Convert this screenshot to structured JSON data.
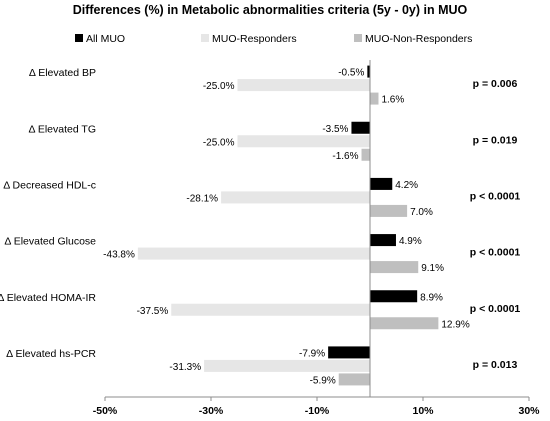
{
  "chart_data": {
    "type": "bar",
    "orientation": "horizontal",
    "title": "Differences (%) in Metabolic abnormalities criteria (5y - 0y) in MUO",
    "categories": [
      "Δ Elevated BP",
      "Δ Elevated TG",
      "Δ Decreased  HDL-c",
      "Δ Elevated Glucose",
      "Δ Elevated HOMA-IR",
      "Δ Elevated hs-PCR"
    ],
    "series": [
      {
        "name": "All MUO",
        "color": "#000000",
        "values": [
          -0.5,
          -3.5,
          4.2,
          4.9,
          8.9,
          -7.9
        ],
        "labels": [
          "-0.5%",
          "-3.5%",
          "4.2%",
          "4.9%",
          "8.9%",
          "-7.9%"
        ]
      },
      {
        "name": "MUO-Responders",
        "color": "#e6e6e6",
        "values": [
          -25.0,
          -25.0,
          -28.1,
          -43.8,
          -37.5,
          -31.3
        ],
        "labels": [
          "-25.0%",
          "-25.0%",
          "-28.1%",
          "-43.8%",
          "-37.5%",
          "-31.3%"
        ]
      },
      {
        "name": "MUO-Non-Responders",
        "color": "#bfbfbf",
        "values": [
          1.6,
          -1.6,
          7.0,
          9.1,
          12.9,
          -5.9
        ],
        "labels": [
          "1.6%",
          "-1.6%",
          "7.0%",
          "9.1%",
          "12.9%",
          "-5.9%"
        ]
      }
    ],
    "p_values": [
      "p = 0.006",
      "p = 0.019",
      "p < 0.0001",
      "p < 0.0001",
      "p < 0.0001",
      "p = 0.013"
    ],
    "xlim": [
      -50,
      30
    ],
    "xticks": [
      -50,
      -30,
      -10,
      10,
      30
    ],
    "xtick_labels": [
      "-50%",
      "-30%",
      "-10%",
      "10%",
      "30%"
    ],
    "legend_position": "top",
    "grid": false
  }
}
